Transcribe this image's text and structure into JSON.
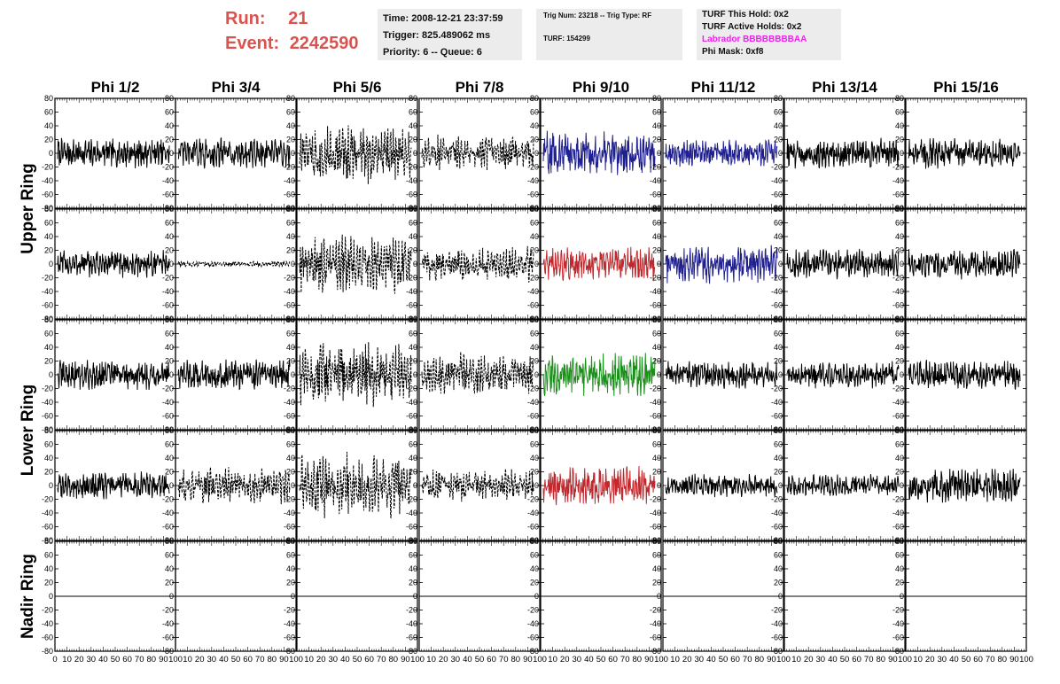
{
  "header": {
    "run_label": "Run:",
    "run_value": "21",
    "event_label": "Event:",
    "event_value": "2242590",
    "run_color": "#d9534f",
    "time_text": "Time: 2008-12-21 23:37:59",
    "trigger_text": "Trigger: 825.489062 ms",
    "priority_text": "Priority: 6 -- Queue: 6",
    "trig_text": "Trig Num: 23218 -- Trig Type: RF",
    "turf_text": "TURF: 154299",
    "hold_text": "TURF This Hold: 0x2",
    "active_holds_text": "TURF Active Holds: 0x2",
    "labrador_text": "Labrador BBBBBBBBAA",
    "labrador_color": "#ee22ee",
    "phi_mask_text": "Phi Mask: 0xf8"
  },
  "chart_data": {
    "type": "line",
    "title": "",
    "columns": [
      "Phi 1/2",
      "Phi 3/4",
      "Phi 5/6",
      "Phi 7/8",
      "Phi 9/10",
      "Phi 11/12",
      "Phi 13/14",
      "Phi 15/16"
    ],
    "row_groups": [
      "Upper Ring",
      "Lower Ring",
      "Nadir Ring"
    ],
    "rows_per_group": [
      2,
      2,
      1
    ],
    "ylim": [
      -80,
      80
    ],
    "xlim": [
      0,
      100
    ],
    "y_ticks": [
      "80",
      "60",
      "40",
      "20",
      "0",
      "-20",
      "-40",
      "-60",
      "-80"
    ],
    "x_ticks": [
      "0",
      "10",
      "20",
      "30",
      "40",
      "50",
      "60",
      "70",
      "80",
      "90",
      "100"
    ],
    "colors": {
      "black": "#000000",
      "blue": "#1f1f8f",
      "red": "#c0282d",
      "green": "#1a8f1a"
    },
    "panels": [
      [
        {
          "color": "black",
          "style": "solid",
          "amplitude": 20
        },
        {
          "color": "black",
          "style": "solid",
          "amplitude": 20
        },
        {
          "color": "black",
          "style": "dashed",
          "amplitude": 40
        },
        {
          "color": "black",
          "style": "dashed",
          "amplitude": 25
        },
        {
          "color": "blue",
          "style": "solid",
          "amplitude": 30
        },
        {
          "color": "blue",
          "style": "solid",
          "amplitude": 18
        },
        {
          "color": "black",
          "style": "solid",
          "amplitude": 20
        },
        {
          "color": "black",
          "style": "solid",
          "amplitude": 20
        }
      ],
      [
        {
          "color": "black",
          "style": "solid",
          "amplitude": 18
        },
        {
          "color": "black",
          "style": "dashed",
          "amplitude": 4
        },
        {
          "color": "black",
          "style": "dashed",
          "amplitude": 40
        },
        {
          "color": "black",
          "style": "dashed",
          "amplitude": 25
        },
        {
          "color": "red",
          "style": "solid",
          "amplitude": 22
        },
        {
          "color": "blue",
          "style": "solid",
          "amplitude": 25
        },
        {
          "color": "black",
          "style": "solid",
          "amplitude": 20
        },
        {
          "color": "black",
          "style": "solid",
          "amplitude": 20
        }
      ],
      [
        {
          "color": "black",
          "style": "solid",
          "amplitude": 20
        },
        {
          "color": "black",
          "style": "solid",
          "amplitude": 20
        },
        {
          "color": "black",
          "style": "dashed",
          "amplitude": 45
        },
        {
          "color": "black",
          "style": "dashed",
          "amplitude": 30
        },
        {
          "color": "green",
          "style": "solid",
          "amplitude": 28
        },
        {
          "color": "black",
          "style": "solid",
          "amplitude": 18
        },
        {
          "color": "black",
          "style": "solid",
          "amplitude": 18
        },
        {
          "color": "black",
          "style": "solid",
          "amplitude": 20
        }
      ],
      [
        {
          "color": "black",
          "style": "solid",
          "amplitude": 18
        },
        {
          "color": "black",
          "style": "dashed",
          "amplitude": 25
        },
        {
          "color": "black",
          "style": "dashed",
          "amplitude": 45
        },
        {
          "color": "black",
          "style": "dashed",
          "amplitude": 22
        },
        {
          "color": "red",
          "style": "solid",
          "amplitude": 25
        },
        {
          "color": "black",
          "style": "solid",
          "amplitude": 15
        },
        {
          "color": "black",
          "style": "solid",
          "amplitude": 15
        },
        {
          "color": "black",
          "style": "solid",
          "amplitude": 22
        }
      ],
      [
        {
          "color": "black",
          "style": "solid",
          "amplitude": 0
        },
        {
          "color": "black",
          "style": "solid",
          "amplitude": 0
        },
        {
          "color": "black",
          "style": "solid",
          "amplitude": 0
        },
        {
          "color": "black",
          "style": "solid",
          "amplitude": 0
        },
        {
          "color": "black",
          "style": "solid",
          "amplitude": 0
        },
        {
          "color": "black",
          "style": "solid",
          "amplitude": 0
        },
        {
          "color": "black",
          "style": "solid",
          "amplitude": 0
        },
        {
          "color": "black",
          "style": "solid",
          "amplitude": 0
        }
      ]
    ]
  }
}
